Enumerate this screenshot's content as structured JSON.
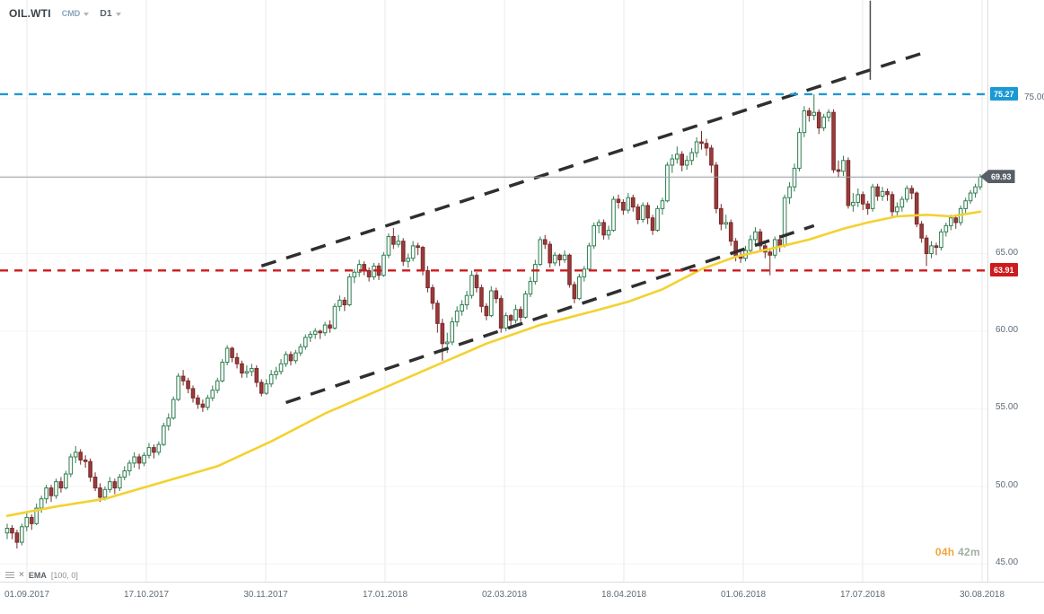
{
  "header": {
    "symbol": "OIL.WTI",
    "provider": "CMD",
    "timeframe": "D1"
  },
  "legend": {
    "indicator": "EMA",
    "params": "[100, 0]"
  },
  "countdown": {
    "hours": "04h",
    "minutes": "42m"
  },
  "axis": {
    "price_labels": [
      {
        "label": "75.00",
        "price": 75
      },
      {
        "label": "65.00",
        "price": 65
      },
      {
        "label": "60.00",
        "price": 60
      },
      {
        "label": "55.00",
        "price": 55
      },
      {
        "label": "50.00",
        "price": 50
      },
      {
        "label": "45.00",
        "price": 45
      }
    ],
    "h_gridlines": [
      45,
      50,
      55,
      60,
      65,
      70,
      75
    ],
    "date_labels": [
      "01.09.2017",
      "17.10.2017",
      "30.11.2017",
      "17.01.2018",
      "02.03.2018",
      "18.04.2018",
      "01.06.2018",
      "17.07.2018",
      "30.08.2018"
    ]
  },
  "price_markers": [
    {
      "name": "resistance-line",
      "label": "75.27",
      "price": 75.27,
      "color": "#1b99d5",
      "style": "dashed"
    },
    {
      "name": "current-price",
      "label": "69.93",
      "price": 69.93,
      "color": "#585f66",
      "style": "current"
    },
    {
      "name": "support-line",
      "label": "63.91",
      "price": 63.91,
      "color": "#cd1a1c",
      "style": "dashed"
    }
  ],
  "theme": {
    "candle_up_border": "#2d7d4f",
    "candle_up_fill": "#ffffff",
    "candle_down_border": "#772b2b",
    "candle_down_fill": "#9c3a3a",
    "ema": "#f4d130",
    "grid": "#eaeaea",
    "h_grid": "#f4f4f4",
    "trendline": "#2f2f2f",
    "current_line": "#9aa0a5",
    "spike": "#4a4a4a"
  },
  "chart_data": {
    "type": "candlestick",
    "title": "OIL.WTI D1 candlestick chart with EMA(100), rising channel trendlines, resistance 75.27 and support 63.91",
    "symbol": "OIL.WTI",
    "timeframe": "D1",
    "x_axis": {
      "start": "01.09.2017",
      "end": "30.08.2018"
    },
    "y_axis": {
      "top": 81.34,
      "bottom": 43.86
    },
    "current_price": 69.93,
    "candles": [
      [
        47.0,
        47.6,
        46.6,
        47.3
      ],
      [
        47.3,
        47.5,
        46.6,
        47.0
      ],
      [
        47.0,
        47.2,
        46.0,
        46.4
      ],
      [
        46.4,
        47.6,
        46.2,
        47.4
      ],
      [
        47.4,
        48.3,
        47.1,
        48.0
      ],
      [
        48.0,
        48.2,
        47.2,
        47.6
      ],
      [
        47.6,
        48.9,
        47.5,
        48.6
      ],
      [
        48.6,
        49.4,
        48.3,
        49.2
      ],
      [
        49.2,
        50.1,
        48.9,
        49.9
      ],
      [
        49.9,
        50.1,
        49.0,
        49.4
      ],
      [
        49.4,
        50.5,
        49.2,
        50.3
      ],
      [
        50.3,
        50.6,
        49.6,
        49.9
      ],
      [
        49.9,
        51.0,
        49.8,
        50.8
      ],
      [
        50.8,
        52.1,
        50.6,
        51.9
      ],
      [
        51.9,
        52.6,
        51.5,
        52.2
      ],
      [
        52.2,
        52.4,
        51.4,
        51.7
      ],
      [
        51.7,
        52.0,
        51.2,
        51.6
      ],
      [
        51.6,
        51.8,
        50.3,
        50.6
      ],
      [
        50.6,
        50.9,
        49.7,
        49.9
      ],
      [
        49.9,
        50.2,
        49.0,
        49.3
      ],
      [
        49.3,
        50.0,
        49.1,
        49.8
      ],
      [
        49.8,
        50.6,
        49.6,
        50.3
      ],
      [
        50.3,
        50.5,
        49.5,
        49.9
      ],
      [
        49.9,
        50.8,
        49.7,
        50.6
      ],
      [
        50.6,
        51.3,
        50.4,
        51.0
      ],
      [
        51.0,
        51.7,
        50.7,
        51.5
      ],
      [
        51.5,
        52.2,
        51.2,
        51.9
      ],
      [
        51.9,
        52.1,
        51.1,
        51.5
      ],
      [
        51.5,
        52.2,
        51.3,
        52.0
      ],
      [
        52.0,
        52.8,
        51.8,
        52.5
      ],
      [
        52.5,
        52.7,
        51.8,
        52.2
      ],
      [
        52.2,
        52.9,
        52.0,
        52.7
      ],
      [
        52.7,
        54.1,
        52.6,
        53.9
      ],
      [
        53.9,
        54.7,
        53.6,
        54.4
      ],
      [
        54.4,
        55.8,
        54.3,
        55.6
      ],
      [
        55.6,
        57.3,
        55.5,
        57.1
      ],
      [
        57.1,
        57.5,
        56.5,
        56.8
      ],
      [
        56.8,
        57.0,
        56.0,
        56.3
      ],
      [
        56.3,
        56.5,
        55.4,
        55.7
      ],
      [
        55.7,
        55.9,
        55.0,
        55.3
      ],
      [
        55.3,
        55.6,
        54.8,
        55.1
      ],
      [
        55.1,
        55.9,
        54.9,
        55.7
      ],
      [
        55.7,
        56.5,
        55.5,
        56.2
      ],
      [
        56.2,
        57.0,
        56.0,
        56.8
      ],
      [
        56.8,
        58.2,
        56.7,
        58.0
      ],
      [
        58.0,
        59.1,
        57.8,
        58.9
      ],
      [
        58.9,
        59.0,
        58.0,
        58.3
      ],
      [
        58.3,
        58.6,
        57.6,
        57.9
      ],
      [
        57.9,
        58.1,
        57.0,
        57.3
      ],
      [
        57.3,
        57.8,
        57.0,
        57.4
      ],
      [
        57.4,
        57.9,
        57.1,
        57.6
      ],
      [
        57.6,
        57.8,
        56.4,
        56.7
      ],
      [
        56.7,
        56.9,
        55.8,
        56.0
      ],
      [
        56.0,
        56.9,
        55.9,
        56.6
      ],
      [
        56.6,
        57.5,
        56.4,
        57.2
      ],
      [
        57.2,
        57.7,
        56.9,
        57.4
      ],
      [
        57.4,
        58.2,
        57.2,
        57.9
      ],
      [
        57.9,
        58.7,
        57.7,
        58.5
      ],
      [
        58.5,
        58.7,
        57.8,
        58.1
      ],
      [
        58.1,
        58.8,
        57.9,
        58.6
      ],
      [
        58.6,
        59.2,
        58.4,
        59.0
      ],
      [
        59.0,
        59.8,
        58.8,
        59.6
      ],
      [
        59.6,
        60.0,
        59.3,
        59.8
      ],
      [
        59.8,
        60.2,
        59.5,
        60.0
      ],
      [
        60.0,
        60.1,
        59.5,
        59.9
      ],
      [
        59.9,
        60.6,
        59.7,
        60.4
      ],
      [
        60.4,
        60.7,
        59.9,
        60.2
      ],
      [
        60.2,
        61.8,
        60.1,
        61.6
      ],
      [
        61.6,
        62.3,
        61.3,
        62.0
      ],
      [
        62.0,
        62.2,
        61.3,
        61.7
      ],
      [
        61.7,
        63.7,
        61.6,
        63.5
      ],
      [
        63.5,
        64.0,
        63.1,
        63.8
      ],
      [
        63.8,
        64.6,
        63.5,
        64.3
      ],
      [
        64.3,
        64.5,
        63.6,
        63.9
      ],
      [
        63.9,
        64.1,
        63.2,
        63.5
      ],
      [
        63.5,
        64.4,
        63.3,
        64.2
      ],
      [
        64.2,
        64.4,
        63.3,
        63.6
      ],
      [
        63.6,
        65.1,
        63.5,
        64.9
      ],
      [
        64.9,
        66.3,
        64.7,
        66.1
      ],
      [
        66.1,
        66.66,
        65.3,
        65.6
      ],
      [
        65.6,
        66.2,
        65.4,
        65.8
      ],
      [
        65.8,
        66.0,
        64.2,
        64.5
      ],
      [
        64.5,
        65.0,
        64.1,
        64.7
      ],
      [
        64.7,
        65.8,
        64.5,
        65.5
      ],
      [
        65.5,
        65.7,
        64.9,
        65.4
      ],
      [
        65.4,
        65.5,
        63.6,
        63.9
      ],
      [
        63.9,
        64.2,
        62.5,
        62.8
      ],
      [
        62.8,
        63.0,
        61.4,
        61.8
      ],
      [
        61.8,
        62.0,
        59.9,
        60.5
      ],
      [
        60.5,
        60.8,
        58.1,
        59.2
      ],
      [
        59.2,
        59.9,
        58.6,
        59.3
      ],
      [
        59.3,
        60.9,
        59.1,
        60.6
      ],
      [
        60.6,
        61.6,
        60.3,
        61.3
      ],
      [
        61.3,
        62.0,
        61.0,
        61.7
      ],
      [
        61.7,
        62.6,
        61.4,
        62.3
      ],
      [
        62.3,
        63.9,
        62.1,
        63.6
      ],
      [
        63.6,
        63.8,
        62.5,
        62.8
      ],
      [
        62.8,
        63.0,
        61.2,
        61.6
      ],
      [
        61.6,
        61.8,
        60.7,
        61.0
      ],
      [
        61.0,
        62.9,
        60.9,
        62.6
      ],
      [
        62.6,
        62.8,
        61.8,
        62.1
      ],
      [
        62.1,
        62.3,
        59.9,
        60.2
      ],
      [
        60.2,
        61.2,
        60.0,
        61.0
      ],
      [
        61.0,
        61.1,
        60.3,
        60.7
      ],
      [
        60.7,
        61.7,
        60.5,
        61.4
      ],
      [
        61.4,
        61.6,
        60.6,
        60.9
      ],
      [
        60.9,
        62.6,
        60.8,
        62.4
      ],
      [
        62.4,
        63.5,
        62.2,
        63.2
      ],
      [
        63.2,
        64.6,
        63.0,
        64.3
      ],
      [
        64.3,
        66.1,
        64.2,
        65.9
      ],
      [
        65.9,
        66.2,
        65.3,
        65.6
      ],
      [
        65.6,
        65.8,
        64.1,
        64.4
      ],
      [
        64.4,
        65.1,
        64.2,
        64.9
      ],
      [
        64.9,
        65.0,
        64.2,
        64.6
      ],
      [
        64.6,
        65.2,
        64.4,
        64.9
      ],
      [
        64.9,
        65.0,
        62.8,
        63.0
      ],
      [
        63.0,
        63.2,
        61.8,
        62.1
      ],
      [
        62.1,
        63.7,
        62.0,
        63.5
      ],
      [
        63.5,
        64.2,
        63.2,
        64.0
      ],
      [
        64.0,
        65.7,
        63.9,
        65.5
      ],
      [
        65.5,
        67.0,
        65.3,
        66.8
      ],
      [
        66.8,
        67.2,
        66.3,
        67.0
      ],
      [
        67.0,
        67.2,
        65.9,
        66.2
      ],
      [
        66.2,
        66.8,
        65.9,
        66.5
      ],
      [
        66.5,
        68.7,
        66.4,
        68.5
      ],
      [
        68.5,
        68.8,
        67.9,
        68.3
      ],
      [
        68.3,
        68.5,
        67.5,
        67.8
      ],
      [
        67.8,
        68.9,
        67.6,
        68.6
      ],
      [
        68.6,
        68.8,
        67.7,
        68.0
      ],
      [
        68.0,
        68.2,
        66.9,
        67.2
      ],
      [
        67.2,
        68.3,
        67.0,
        68.1
      ],
      [
        68.1,
        68.3,
        66.9,
        67.3
      ],
      [
        67.3,
        67.5,
        66.2,
        66.5
      ],
      [
        66.5,
        68.1,
        66.4,
        67.9
      ],
      [
        67.9,
        68.6,
        67.5,
        68.4
      ],
      [
        68.4,
        70.9,
        68.3,
        70.7
      ],
      [
        70.7,
        71.4,
        70.2,
        71.1
      ],
      [
        71.1,
        71.9,
        70.8,
        71.4
      ],
      [
        71.4,
        71.6,
        70.3,
        70.7
      ],
      [
        70.7,
        71.3,
        70.4,
        71.0
      ],
      [
        71.0,
        71.8,
        70.7,
        71.5
      ],
      [
        71.5,
        72.5,
        71.2,
        72.2
      ],
      [
        72.2,
        72.9,
        71.7,
        72.1
      ],
      [
        72.1,
        72.4,
        71.3,
        71.8
      ],
      [
        71.8,
        72.0,
        70.2,
        70.7
      ],
      [
        70.7,
        70.9,
        67.6,
        67.9
      ],
      [
        67.9,
        68.2,
        66.5,
        66.9
      ],
      [
        66.9,
        67.5,
        66.6,
        67.0
      ],
      [
        67.0,
        67.2,
        65.5,
        65.8
      ],
      [
        65.8,
        66.0,
        64.5,
        64.8
      ],
      [
        64.8,
        65.3,
        64.4,
        64.7
      ],
      [
        64.7,
        65.5,
        64.5,
        65.2
      ],
      [
        65.2,
        66.2,
        65.0,
        65.9
      ],
      [
        65.9,
        66.7,
        65.6,
        66.4
      ],
      [
        66.4,
        66.6,
        65.2,
        65.5
      ],
      [
        65.5,
        65.8,
        64.7,
        65.1
      ],
      [
        65.1,
        65.3,
        63.6,
        64.9
      ],
      [
        64.9,
        66.1,
        64.7,
        65.9
      ],
      [
        65.9,
        66.2,
        65.1,
        65.5
      ],
      [
        65.5,
        68.8,
        65.4,
        68.6
      ],
      [
        68.6,
        69.6,
        68.2,
        69.3
      ],
      [
        69.3,
        70.8,
        69.0,
        70.5
      ],
      [
        70.5,
        73.1,
        70.3,
        72.8
      ],
      [
        72.8,
        74.5,
        72.5,
        74.2
      ],
      [
        74.2,
        74.4,
        73.5,
        73.9
      ],
      [
        73.9,
        75.27,
        73.6,
        74.1
      ],
      [
        74.1,
        74.3,
        72.7,
        73.1
      ],
      [
        73.1,
        74.0,
        72.9,
        73.8
      ],
      [
        73.8,
        74.3,
        73.5,
        74.1
      ],
      [
        74.1,
        74.3,
        70.2,
        70.4
      ],
      [
        70.4,
        71.0,
        69.9,
        70.3
      ],
      [
        70.3,
        71.3,
        70.0,
        71.0
      ],
      [
        71.0,
        71.2,
        67.9,
        68.1
      ],
      [
        68.1,
        68.9,
        67.7,
        68.3
      ],
      [
        68.3,
        69.2,
        68.0,
        68.8
      ],
      [
        68.8,
        69.0,
        67.8,
        68.2
      ],
      [
        68.2,
        68.4,
        67.5,
        67.9
      ],
      [
        67.9,
        69.5,
        67.7,
        69.3
      ],
      [
        69.3,
        69.5,
        68.4,
        68.7
      ],
      [
        68.7,
        69.3,
        68.4,
        69.0
      ],
      [
        69.0,
        69.2,
        68.4,
        68.8
      ],
      [
        68.8,
        69.0,
        67.4,
        67.7
      ],
      [
        67.7,
        68.3,
        67.4,
        68.0
      ],
      [
        68.0,
        68.7,
        67.7,
        68.5
      ],
      [
        68.5,
        69.4,
        68.3,
        69.2
      ],
      [
        69.2,
        69.4,
        68.5,
        68.9
      ],
      [
        68.9,
        69.0,
        66.7,
        66.9
      ],
      [
        66.9,
        67.1,
        65.7,
        66.0
      ],
      [
        66.0,
        66.2,
        64.2,
        65.0
      ],
      [
        65.0,
        65.8,
        64.7,
        65.5
      ],
      [
        65.5,
        65.7,
        64.9,
        65.4
      ],
      [
        65.4,
        66.6,
        65.2,
        66.4
      ],
      [
        66.4,
        67.0,
        66.1,
        66.8
      ],
      [
        66.8,
        67.5,
        66.5,
        67.3
      ],
      [
        67.3,
        67.5,
        66.6,
        67.0
      ],
      [
        67.0,
        68.1,
        66.8,
        67.9
      ],
      [
        67.9,
        68.6,
        67.6,
        68.4
      ],
      [
        68.4,
        69.1,
        68.2,
        68.9
      ],
      [
        68.9,
        69.5,
        68.6,
        69.3
      ],
      [
        69.3,
        70.12,
        69.1,
        69.93
      ]
    ],
    "ema_100": [
      [
        0,
        48.1
      ],
      [
        10,
        48.7
      ],
      [
        20,
        49.2
      ],
      [
        32,
        50.3
      ],
      [
        43,
        51.3
      ],
      [
        54,
        52.9
      ],
      [
        65,
        54.7
      ],
      [
        76,
        56.2
      ],
      [
        87,
        57.7
      ],
      [
        98,
        59.2
      ],
      [
        109,
        60.4
      ],
      [
        120,
        61.3
      ],
      [
        127,
        61.9
      ],
      [
        134,
        62.7
      ],
      [
        142,
        64.0
      ],
      [
        149,
        64.8
      ],
      [
        156,
        65.3
      ],
      [
        164,
        65.9
      ],
      [
        171,
        66.6
      ],
      [
        176,
        67.0
      ],
      [
        182,
        67.4
      ],
      [
        188,
        67.5
      ],
      [
        193,
        67.4
      ],
      [
        199,
        67.7
      ]
    ],
    "trendlines": [
      {
        "name": "upper-channel",
        "i1": 52,
        "p1": 64.2,
        "i2": 188,
        "p2": 78.0
      },
      {
        "name": "lower-channel",
        "i1": 57,
        "p1": 55.4,
        "i2": 165,
        "p2": 66.8
      }
    ],
    "spike_line": {
      "i": 176.5,
      "p_top": 81.3,
      "p_bottom": 76.2
    }
  }
}
